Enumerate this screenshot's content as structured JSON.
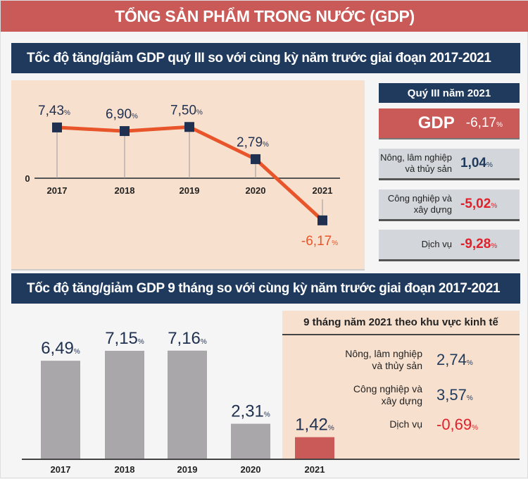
{
  "title": "TỔNG SẢN PHẨM TRONG NƯỚC (GDP)",
  "colors": {
    "header_red": "#c95a57",
    "navy": "#1f3a5c",
    "line": "#e8552a",
    "bar_gray": "#a9a7aa",
    "bar_2021": "#c95a57",
    "negative": "#e0202a",
    "panel": "#f8e0ce"
  },
  "section1": {
    "title": "Tốc độ tăng/giảm GDP quý III so với cùng kỳ năm trước giai đoạn 2017-2021",
    "side": {
      "heading": "Quý III năm 2021",
      "gdp_label": "GDP",
      "gdp_value": "-6,17",
      "items": [
        {
          "label1": "Nông, lâm nghiệp",
          "label2": "và thủy sản",
          "value": "1,04"
        },
        {
          "label1": "Công nghiệp và",
          "label2": "xây dựng",
          "value": "-5,02"
        },
        {
          "label1": "Dịch vụ",
          "label2": "",
          "value": "-9,28"
        }
      ]
    }
  },
  "section2": {
    "title": "Tốc độ tăng/giảm GDP 9 tháng so với cùng kỳ năm trước giai đoạn 2017-2021",
    "side": {
      "heading": "9 tháng năm 2021 theo khu vực kinh tế",
      "items": [
        {
          "label1": "Nông, lâm nghiệp",
          "label2": "và thủy sản",
          "value": "2,74"
        },
        {
          "label1": "Công nghiệp và",
          "label2": "xây dựng",
          "value": "3,57"
        },
        {
          "label1": "Dịch vụ",
          "label2": "",
          "value": "-0,69"
        }
      ]
    }
  },
  "pct": "%",
  "chart_data": [
    {
      "type": "line",
      "categories": [
        "2017",
        "2018",
        "2019",
        "2020",
        "2021"
      ],
      "values": [
        7.43,
        6.9,
        7.5,
        2.79,
        -6.17
      ],
      "labels": [
        "7,43",
        "6,90",
        "7,50",
        "2,79",
        "-6,17"
      ],
      "yzero_label": "0",
      "unit": "%"
    },
    {
      "type": "bar",
      "categories": [
        "2017",
        "2018",
        "2019",
        "2020",
        "2021"
      ],
      "values": [
        6.49,
        7.15,
        7.16,
        2.31,
        1.42
      ],
      "labels": [
        "6,49",
        "7,15",
        "7,16",
        "2,31",
        "1,42"
      ],
      "unit": "%"
    }
  ]
}
